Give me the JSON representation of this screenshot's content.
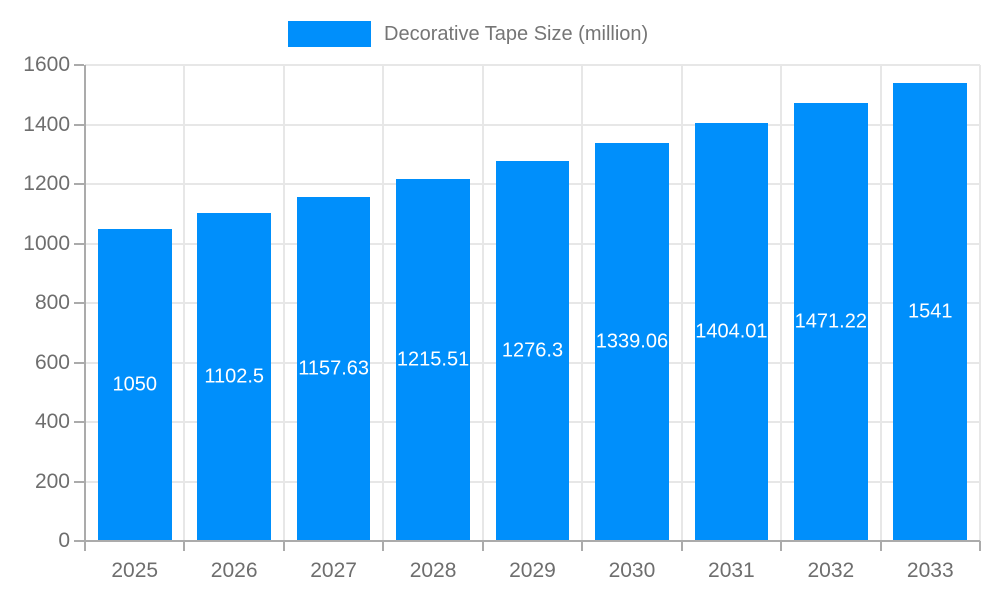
{
  "chart_data": {
    "type": "bar",
    "title": "Decorative Tape Size (million)",
    "legend": {
      "position": "top",
      "entries": [
        "Decorative Tape Size (million)"
      ]
    },
    "categories": [
      "2025",
      "2026",
      "2027",
      "2028",
      "2029",
      "2030",
      "2031",
      "2032",
      "2033"
    ],
    "series": [
      {
        "name": "Decorative Tape Size (million)",
        "values": [
          1050,
          1102.5,
          1157.63,
          1215.51,
          1276.3,
          1339.06,
          1404.01,
          1471.22,
          1541
        ],
        "value_labels": [
          "1050",
          "1102.5",
          "1157.63",
          "1215.51",
          "1276.3",
          "1339.06",
          "1404.01",
          "1471.22",
          "1541"
        ]
      }
    ],
    "xlabel": "",
    "ylabel": "",
    "ylim": [
      0,
      1600
    ],
    "yticks": [
      0,
      200,
      400,
      600,
      800,
      1000,
      1200,
      1400,
      1600
    ],
    "grid": true,
    "colors": {
      "bar": "#008FFB",
      "grid_line": "#e7e7e7",
      "axis_line": "#ababab",
      "tick_text": "#6e6e6e",
      "legend_text": "#757575",
      "bar_label_text": "#ffffff",
      "background": "#ffffff"
    }
  }
}
